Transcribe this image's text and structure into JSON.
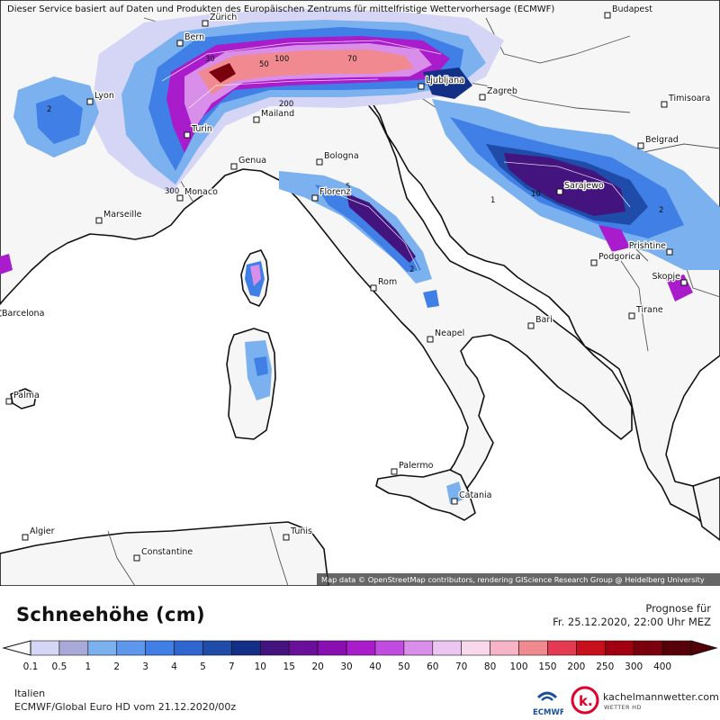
{
  "top_note": "Dieser Service basiert auf Daten und Produkten des Europäischen Zentrums für mittelfristige Wettervorhersage (ECMWF)",
  "attribution": "Map data © OpenStreetMap contributors, rendering GIScience Research Group @ Heidelberg University",
  "cities": [
    {
      "name": "Zürich"
    },
    {
      "name": "Budapest"
    },
    {
      "name": "Bern"
    },
    {
      "name": "Lyon"
    },
    {
      "name": "Ljubljana"
    },
    {
      "name": "Zagreb"
    },
    {
      "name": "Timisoara"
    },
    {
      "name": "Mailand"
    },
    {
      "name": "Turin"
    },
    {
      "name": "Belgrad"
    },
    {
      "name": "Genua"
    },
    {
      "name": "Bologna"
    },
    {
      "name": "Sarajewo"
    },
    {
      "name": "Monaco"
    },
    {
      "name": "Florenz"
    },
    {
      "name": "Marseille"
    },
    {
      "name": "Prishtine"
    },
    {
      "name": "Podgorica"
    },
    {
      "name": "Skopje"
    },
    {
      "name": "Rom"
    },
    {
      "name": "Barcelona"
    },
    {
      "name": "Tirane"
    },
    {
      "name": "Bari"
    },
    {
      "name": "Neapel"
    },
    {
      "name": "Palma"
    },
    {
      "name": "Palermo"
    },
    {
      "name": "Catania"
    },
    {
      "name": "Algier"
    },
    {
      "name": "Tunis"
    },
    {
      "name": "Constantine"
    }
  ],
  "contour_labels": [
    "100",
    "50",
    "30",
    "70",
    "200",
    "300",
    "10",
    "5",
    "2",
    "1"
  ],
  "footer": {
    "title": "Schneehöhe (cm)",
    "forecast_label": "Prognose für",
    "forecast_date": "Fr. 25.12.2020, 22:00 Uhr MEZ",
    "region": "Italien",
    "model": "ECMWF/Global Euro HD vom  21.12.2020/00z",
    "brand": "kachelmannwetter.com",
    "brand_sub": "WETTER HD",
    "ecmwf_text": "ECMWF",
    "km_logo_letter": "k."
  },
  "legend": {
    "labels": [
      "0.1",
      "0.5",
      "1",
      "2",
      "3",
      "4",
      "5",
      "7",
      "10",
      "15",
      "20",
      "30",
      "40",
      "50",
      "60",
      "70",
      "80",
      "100",
      "150",
      "200",
      "250",
      "300",
      "400"
    ],
    "colors": [
      "#d5d5f5",
      "#a9a9d8",
      "#7ab1ee",
      "#5d98ee",
      "#3f7fe6",
      "#2f65cf",
      "#1f4ca8",
      "#142f86",
      "#43137e",
      "#6a0f9a",
      "#8a0fb3",
      "#a91ccc",
      "#c24be0",
      "#d98fe9",
      "#ecc5f0",
      "#f9d8ec",
      "#f7b3c8",
      "#f08a90",
      "#e33a52",
      "#c8101c",
      "#a00010",
      "#7b000d",
      "#560008"
    ]
  },
  "colors": {
    "land": "#f6f6f6",
    "sea": "#ffffff",
    "coast": "#111111",
    "border": "#555555"
  }
}
